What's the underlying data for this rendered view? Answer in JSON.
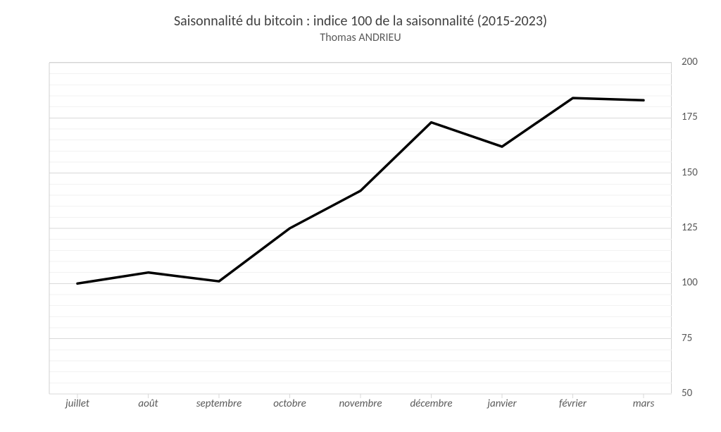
{
  "chart": {
    "type": "line",
    "title": "Saisonnalité du bitcoin : indice 100  de la saisonnalité (2015-2023)",
    "subtitle": "Thomas ANDRIEU",
    "title_fontsize": 20,
    "subtitle_fontsize": 16,
    "title_color": "#404040",
    "subtitle_color": "#595959",
    "background_color": "#ffffff",
    "plot_border_color": "#d0d0d0",
    "grid_major_color": "#d9d9d9",
    "grid_minor_color": "#f2f2f2",
    "line_color": "#000000",
    "line_width": 3.5,
    "axis_label_color": "#595959",
    "axis_label_fontsize": 15,
    "x_label_font_style": "italic",
    "y_axis_side": "right",
    "ylim": [
      50,
      200
    ],
    "ytick_major_step": 25,
    "ytick_minor_step": 5,
    "yticks": [
      50,
      75,
      100,
      125,
      150,
      175,
      200
    ],
    "categories": [
      "juillet",
      "août",
      "septembre",
      "octobre",
      "novembre",
      "décembre",
      "janvier",
      "février",
      "mars"
    ],
    "values": [
      100,
      105,
      101,
      125,
      142,
      173,
      162,
      184,
      183
    ]
  }
}
